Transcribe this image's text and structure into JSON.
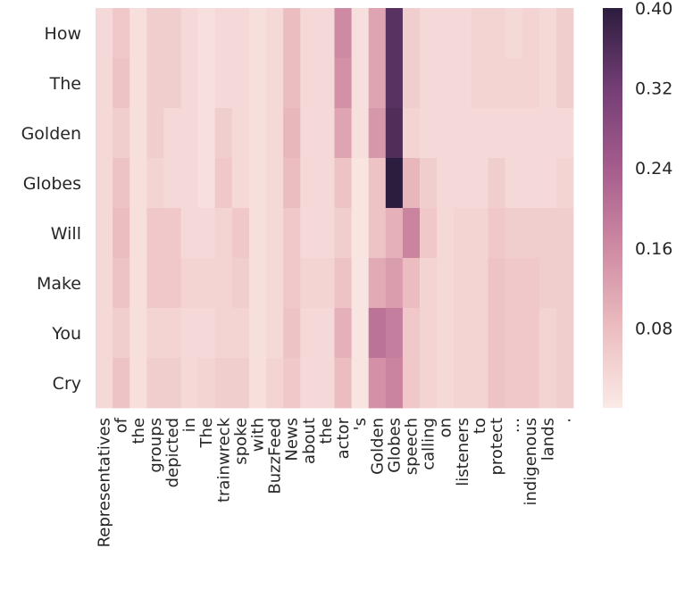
{
  "chart_data": {
    "type": "heatmap",
    "title": "",
    "xlabel": "",
    "ylabel": "",
    "rows": [
      "How",
      "The",
      "Golden",
      "Globes",
      "Will",
      "Make",
      "You",
      "Cry"
    ],
    "columns": [
      "Representatives",
      "of",
      "the",
      "groups",
      "depicted",
      "in",
      "The",
      "trainwreck",
      "spoke",
      "with",
      "BuzzFeed",
      "News",
      "about",
      "the",
      "actor",
      "'s",
      "Golden",
      "Globes",
      "speech",
      "calling",
      "on",
      "listeners",
      "to",
      "protect",
      "...",
      "indigenous",
      "lands",
      "."
    ],
    "values": [
      [
        0.03,
        0.06,
        0.02,
        0.05,
        0.05,
        0.03,
        0.02,
        0.03,
        0.03,
        0.02,
        0.03,
        0.08,
        0.03,
        0.03,
        0.16,
        0.02,
        0.12,
        0.35,
        0.05,
        0.03,
        0.03,
        0.03,
        0.04,
        0.04,
        0.03,
        0.04,
        0.03,
        0.05
      ],
      [
        0.03,
        0.07,
        0.02,
        0.05,
        0.05,
        0.03,
        0.02,
        0.03,
        0.03,
        0.02,
        0.03,
        0.08,
        0.03,
        0.03,
        0.15,
        0.02,
        0.12,
        0.35,
        0.05,
        0.03,
        0.03,
        0.03,
        0.04,
        0.04,
        0.04,
        0.04,
        0.03,
        0.05
      ],
      [
        0.03,
        0.05,
        0.02,
        0.05,
        0.03,
        0.03,
        0.02,
        0.05,
        0.03,
        0.02,
        0.03,
        0.09,
        0.03,
        0.03,
        0.12,
        0.02,
        0.14,
        0.36,
        0.04,
        0.03,
        0.03,
        0.03,
        0.03,
        0.03,
        0.03,
        0.03,
        0.03,
        0.03
      ],
      [
        0.03,
        0.07,
        0.02,
        0.04,
        0.03,
        0.03,
        0.02,
        0.06,
        0.03,
        0.02,
        0.03,
        0.08,
        0.03,
        0.03,
        0.07,
        0.01,
        0.07,
        0.4,
        0.09,
        0.05,
        0.03,
        0.03,
        0.03,
        0.05,
        0.03,
        0.03,
        0.03,
        0.04
      ],
      [
        0.03,
        0.08,
        0.02,
        0.06,
        0.06,
        0.03,
        0.03,
        0.04,
        0.06,
        0.02,
        0.03,
        0.06,
        0.03,
        0.03,
        0.05,
        0.01,
        0.07,
        0.1,
        0.17,
        0.06,
        0.03,
        0.04,
        0.04,
        0.06,
        0.05,
        0.05,
        0.05,
        0.05
      ],
      [
        0.03,
        0.07,
        0.02,
        0.06,
        0.06,
        0.04,
        0.04,
        0.04,
        0.05,
        0.02,
        0.03,
        0.06,
        0.04,
        0.04,
        0.07,
        0.01,
        0.11,
        0.13,
        0.08,
        0.04,
        0.03,
        0.04,
        0.04,
        0.07,
        0.06,
        0.06,
        0.05,
        0.05
      ],
      [
        0.03,
        0.05,
        0.02,
        0.04,
        0.04,
        0.03,
        0.03,
        0.04,
        0.04,
        0.02,
        0.03,
        0.07,
        0.03,
        0.03,
        0.1,
        0.01,
        0.2,
        0.18,
        0.06,
        0.04,
        0.03,
        0.04,
        0.04,
        0.07,
        0.06,
        0.06,
        0.04,
        0.05
      ],
      [
        0.03,
        0.07,
        0.02,
        0.05,
        0.05,
        0.03,
        0.04,
        0.05,
        0.05,
        0.02,
        0.04,
        0.06,
        0.03,
        0.03,
        0.08,
        0.01,
        0.15,
        0.17,
        0.06,
        0.04,
        0.03,
        0.04,
        0.04,
        0.07,
        0.06,
        0.06,
        0.04,
        0.05
      ]
    ],
    "colorbar": {
      "min": 0.0,
      "max": 0.4,
      "ticks": [
        "0.08",
        "0.16",
        "0.24",
        "0.32",
        "0.40"
      ]
    },
    "colormap": [
      "#faeae6",
      "#ecbdc0",
      "#cf8aa3",
      "#a65c8d",
      "#733e75",
      "#2c1d3e"
    ]
  }
}
